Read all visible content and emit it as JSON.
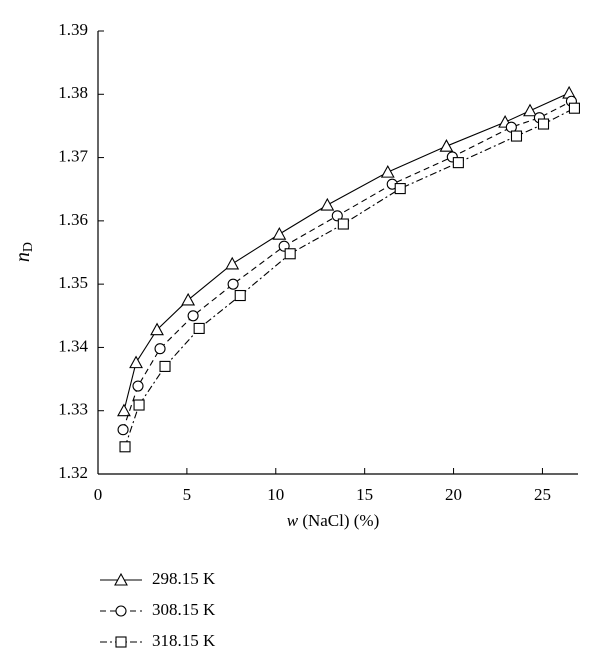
{
  "chart_data": {
    "type": "line",
    "xlabel_var": "w",
    "xlabel": "(NaCl) (%)",
    "ylabel": "n",
    "ylabel_subscript": "D",
    "xlim": [
      0,
      27
    ],
    "xticks": [
      0,
      5,
      10,
      15,
      20,
      25
    ],
    "ylim": [
      1.32,
      1.39
    ],
    "yticks": [
      1.32,
      1.33,
      1.34,
      1.35,
      1.36,
      1.37,
      1.38,
      1.39
    ],
    "legend": "bottom-left",
    "series": [
      {
        "name": "298.15 K",
        "color": "#000000",
        "dash": "solid",
        "marker": "triangle",
        "x": [
          1.46,
          2.14,
          3.32,
          5.07,
          7.55,
          10.2,
          12.9,
          16.3,
          19.6,
          22.9,
          24.3,
          26.5
        ],
        "values": [
          1.33,
          1.3376,
          1.3428,
          1.3475,
          1.3532,
          1.3579,
          1.3625,
          1.3677,
          1.3718,
          1.3756,
          1.3774,
          1.3802
        ]
      },
      {
        "name": "308.15 K",
        "color": "#000000",
        "dash": "dashed",
        "marker": "circle",
        "x": [
          1.41,
          2.25,
          3.49,
          5.35,
          7.6,
          10.47,
          13.46,
          16.55,
          19.93,
          23.25,
          24.83,
          26.63
        ],
        "values": [
          1.327,
          1.3339,
          1.3398,
          1.345,
          1.35,
          1.356,
          1.3608,
          1.3658,
          1.3701,
          1.3748,
          1.3763,
          1.3789
        ]
      },
      {
        "name": "318.15 K",
        "color": "#000000",
        "dash": "dashdot",
        "marker": "square",
        "x": [
          1.52,
          2.31,
          3.77,
          5.69,
          8.0,
          10.81,
          13.8,
          17.0,
          20.27,
          23.54,
          25.06,
          26.8
        ],
        "values": [
          1.3243,
          1.3309,
          1.337,
          1.343,
          1.3482,
          1.3548,
          1.3595,
          1.3651,
          1.3692,
          1.3734,
          1.3753,
          1.3778
        ]
      }
    ]
  }
}
